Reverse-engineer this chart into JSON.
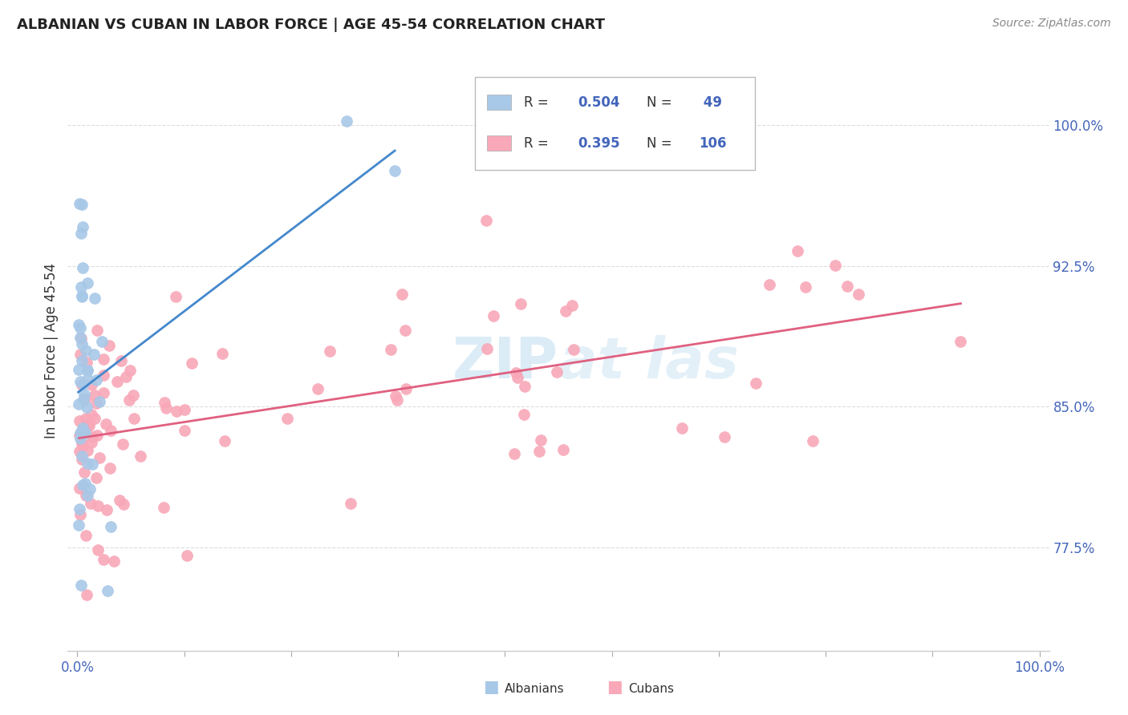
{
  "title": "ALBANIAN VS CUBAN IN LABOR FORCE | AGE 45-54 CORRELATION CHART",
  "source": "Source: ZipAtlas.com",
  "ylabel": "In Labor Force | Age 45-54",
  "albanian_R": 0.504,
  "albanian_N": 49,
  "cuban_R": 0.395,
  "cuban_N": 106,
  "albanian_color": "#a8c8e8",
  "cuban_color": "#f8a8b8",
  "albanian_line_color": "#4488cc",
  "cuban_line_color": "#e06080",
  "yticks": [
    0.775,
    0.85,
    0.925,
    1.0
  ],
  "ytick_labels": [
    "77.5%",
    "85.0%",
    "92.5%",
    "100.0%"
  ],
  "xtick_labels": [
    "0.0%",
    "",
    "",
    "",
    "",
    "",
    "",
    "",
    "",
    "100.0%"
  ],
  "xlim": [
    -0.01,
    1.01
  ],
  "ylim": [
    0.72,
    1.04
  ],
  "watermark_color": "#cce4f4",
  "grid_color": "#dddddd",
  "right_tick_color": "#4466bb",
  "bottom_tick_color": "#4466bb"
}
